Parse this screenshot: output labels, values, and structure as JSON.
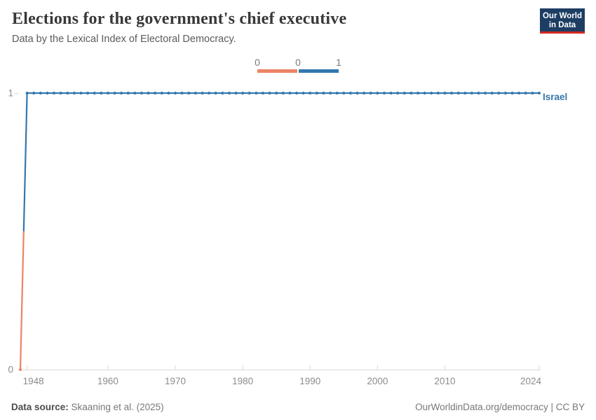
{
  "header": {
    "title": "Elections for the government's chief executive",
    "subtitle": "Data by the Lexical Index of Electoral Democracy."
  },
  "logo": {
    "line1": "Our World",
    "line2": "in Data",
    "bg_color": "#1d3d63",
    "accent_color": "#d42b21"
  },
  "legend": {
    "labels": [
      "0",
      "0",
      "1"
    ]
  },
  "footer": {
    "source_label": "Data source:",
    "source_value": "Skaaning et al. (2025)",
    "credit": "OurWorldinData.org/democracy | CC BY"
  },
  "chart_data": {
    "type": "line",
    "title": "Elections for the government's chief executive",
    "subtitle": "Data by the Lexical Index of Electoral Democracy.",
    "entity_label": "Israel",
    "xlim": [
      1947,
      2024
    ],
    "ylim": [
      0,
      1
    ],
    "x_ticks": [
      1948,
      1960,
      1970,
      1980,
      1990,
      2000,
      2010,
      2024
    ],
    "y_ticks": [
      0,
      1
    ],
    "grid": false,
    "legend_position": "top-center",
    "colors": {
      "value_0": "#ED8366",
      "value_1": "#3377AE",
      "entity_label": "#3577ab",
      "axis": "#d9d9d9",
      "tick_text": "#8c8c8c"
    },
    "series": [
      {
        "name": "Israel",
        "x": [
          1947,
          1948,
          1949,
          1950,
          1951,
          1952,
          1953,
          1954,
          1955,
          1956,
          1957,
          1958,
          1959,
          1960,
          1961,
          1962,
          1963,
          1964,
          1965,
          1966,
          1967,
          1968,
          1969,
          1970,
          1971,
          1972,
          1973,
          1974,
          1975,
          1976,
          1977,
          1978,
          1979,
          1980,
          1981,
          1982,
          1983,
          1984,
          1985,
          1986,
          1987,
          1988,
          1989,
          1990,
          1991,
          1992,
          1993,
          1994,
          1995,
          1996,
          1997,
          1998,
          1999,
          2000,
          2001,
          2002,
          2003,
          2004,
          2005,
          2006,
          2007,
          2008,
          2009,
          2010,
          2011,
          2012,
          2013,
          2014,
          2015,
          2016,
          2017,
          2018,
          2019,
          2020,
          2021,
          2022,
          2023,
          2024
        ],
        "values": [
          0,
          1,
          1,
          1,
          1,
          1,
          1,
          1,
          1,
          1,
          1,
          1,
          1,
          1,
          1,
          1,
          1,
          1,
          1,
          1,
          1,
          1,
          1,
          1,
          1,
          1,
          1,
          1,
          1,
          1,
          1,
          1,
          1,
          1,
          1,
          1,
          1,
          1,
          1,
          1,
          1,
          1,
          1,
          1,
          1,
          1,
          1,
          1,
          1,
          1,
          1,
          1,
          1,
          1,
          1,
          1,
          1,
          1,
          1,
          1,
          1,
          1,
          1,
          1,
          1,
          1,
          1,
          1,
          1,
          1,
          1,
          1,
          1,
          1,
          1,
          1,
          1,
          1
        ]
      }
    ]
  }
}
